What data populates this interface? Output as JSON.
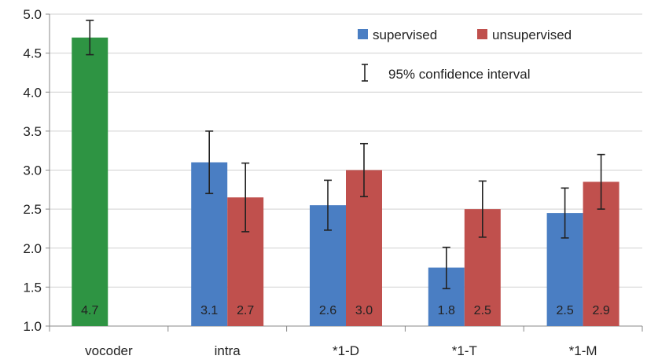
{
  "chart_data": {
    "type": "bar",
    "title": "",
    "xlabel": "",
    "ylabel": "",
    "ylim": [
      1.0,
      5.0
    ],
    "yticks": [
      "1.0",
      "1.5",
      "2.0",
      "2.5",
      "3.0",
      "3.5",
      "4.0",
      "4.5",
      "5.0"
    ],
    "categories": [
      "vocoder",
      "intra",
      "*1-D",
      "*1-T",
      "*1-M"
    ],
    "series": [
      {
        "key": "vocoder",
        "color": "#2e9443",
        "values": [
          4.7,
          null,
          null,
          null,
          null
        ],
        "ci_low": [
          4.48,
          null,
          null,
          null,
          null
        ],
        "ci_high": [
          4.92,
          null,
          null,
          null,
          null
        ],
        "labels": [
          "4.7",
          null,
          null,
          null,
          null
        ]
      },
      {
        "name": "supervised",
        "color": "#4a7ec3",
        "values": [
          null,
          3.1,
          2.55,
          1.75,
          2.45
        ],
        "ci_low": [
          null,
          2.7,
          2.23,
          1.48,
          2.13
        ],
        "ci_high": [
          null,
          3.5,
          2.87,
          2.01,
          2.77
        ],
        "labels": [
          null,
          "3.1",
          "2.6",
          "1.8",
          "2.5"
        ]
      },
      {
        "name": "unsupervised",
        "color": "#c0504d",
        "values": [
          null,
          2.65,
          3.0,
          2.5,
          2.85
        ],
        "ci_low": [
          null,
          2.21,
          2.66,
          2.14,
          2.5
        ],
        "ci_high": [
          null,
          3.09,
          3.34,
          2.86,
          3.2
        ],
        "labels": [
          null,
          "2.7",
          "3.0",
          "2.5",
          "2.9"
        ]
      }
    ],
    "legend": {
      "placement": "top-right",
      "entries": [
        "supervised",
        "unsupervised"
      ],
      "ci_label": "95% confidence interval"
    },
    "grid": {
      "y": true,
      "x": false
    },
    "error_bars": "95% confidence interval"
  }
}
